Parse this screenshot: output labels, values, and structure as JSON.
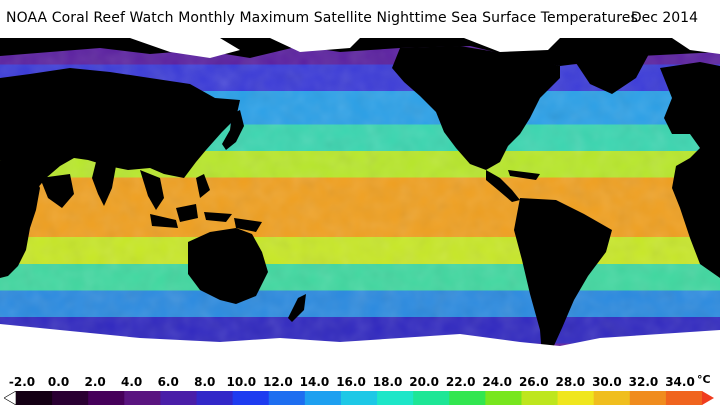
{
  "header": {
    "title": "NOAA Coral Reef Watch Monthly Maximum Satellite Nighttime Sea Surface Temperatures",
    "date": "Dec 2014"
  },
  "map": {
    "ocean_bands": [
      {
        "from": 0.0,
        "to": 0.08,
        "color": "#5a1fa0"
      },
      {
        "from": 0.08,
        "to": 0.16,
        "color": "#3a3ad8"
      },
      {
        "from": 0.16,
        "to": 0.26,
        "color": "#2aa0e8"
      },
      {
        "from": 0.26,
        "to": 0.34,
        "color": "#3ad6b0"
      },
      {
        "from": 0.34,
        "to": 0.42,
        "color": "#b8e82a"
      },
      {
        "from": 0.42,
        "to": 0.6,
        "color": "#f0a020"
      },
      {
        "from": 0.6,
        "to": 0.68,
        "color": "#c8e826"
      },
      {
        "from": 0.68,
        "to": 0.76,
        "color": "#40d8a0"
      },
      {
        "from": 0.76,
        "to": 0.84,
        "color": "#2a8ae0"
      },
      {
        "from": 0.84,
        "to": 0.92,
        "color": "#3028c0"
      },
      {
        "from": 0.92,
        "to": 1.0,
        "color": "#6020a0"
      }
    ],
    "land_color": "#000000",
    "ice_color": "#ffffff"
  },
  "colorbar": {
    "unit": "°C",
    "ticks": [
      "-2.0",
      "0.0",
      "2.0",
      "4.0",
      "6.0",
      "8.0",
      "10.0",
      "12.0",
      "14.0",
      "16.0",
      "18.0",
      "20.0",
      "22.0",
      "24.0",
      "26.0",
      "28.0",
      "30.0",
      "32.0",
      "34.0"
    ],
    "colors": [
      "#ffffff",
      "#140014",
      "#2a0032",
      "#46005a",
      "#5a1480",
      "#4a1ea8",
      "#3228c8",
      "#1e3cf0",
      "#1e6ef0",
      "#1ea0f0",
      "#1ec8e6",
      "#1ee6c8",
      "#1ee696",
      "#32e650",
      "#78e61e",
      "#bee61e",
      "#f0e61e",
      "#f0be1e",
      "#f08c1e",
      "#f0641e",
      "#f03c1e"
    ]
  }
}
